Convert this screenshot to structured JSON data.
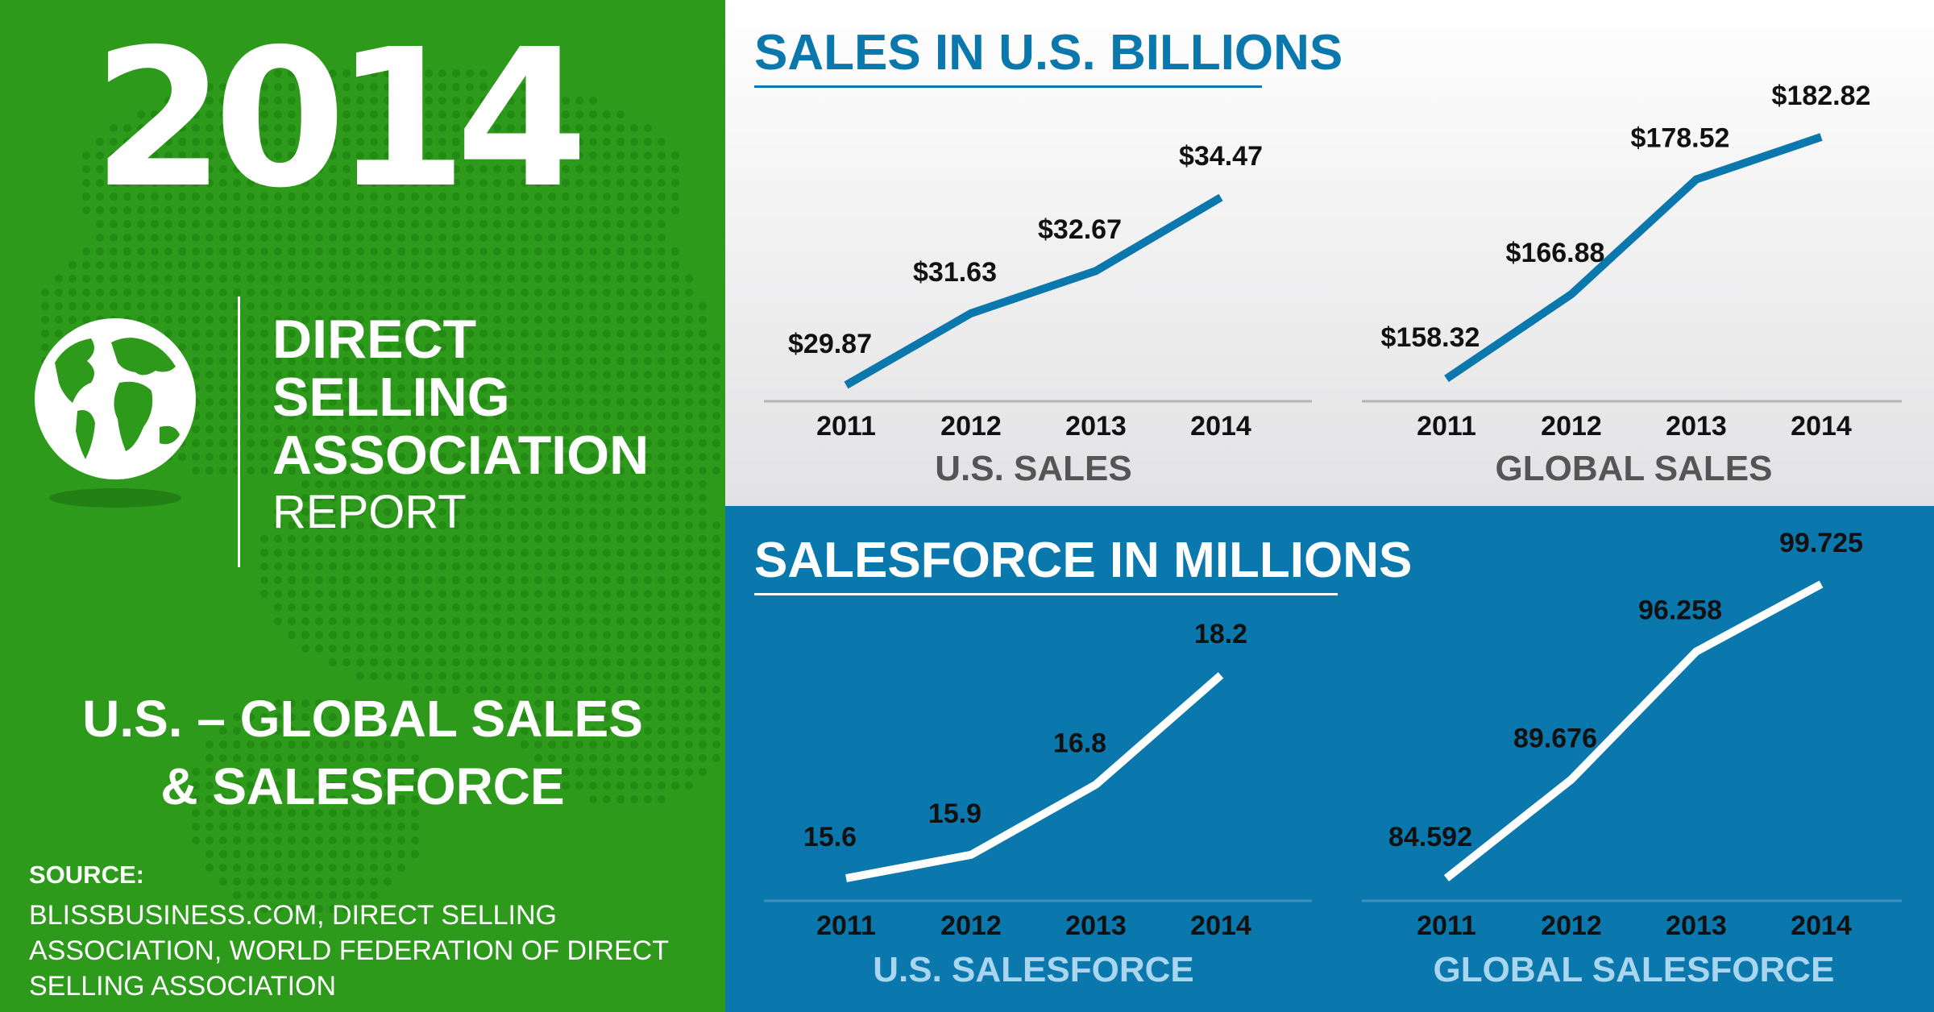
{
  "left": {
    "year": "2014",
    "org_lines": [
      "DIRECT",
      "SELLING",
      "ASSOCIATION"
    ],
    "report": "REPORT",
    "subtitle_lines": [
      "U.S. – GLOBAL SALES",
      "& SALESFORCE"
    ],
    "source_label": "SOURCE:",
    "source_lines": [
      "BLISSBUSINESS.COM, DIRECT SELLING",
      "ASSOCIATION, WORLD FEDERATION OF DIRECT",
      "SELLING ASSOCIATION"
    ],
    "icon": "globe-icon"
  },
  "sections": {
    "sales_title": "SALES IN U.S. BILLIONS",
    "salesforce_title": "SALESFORCE IN MILLIONS"
  },
  "colors": {
    "green": "#2e9a1c",
    "blue": "#0a77ad",
    "label_dark": "#111111",
    "axis_name_gray": "#555555",
    "axis_name_light_blue": "#a9d6ee"
  },
  "chart_data": [
    {
      "type": "line",
      "title": "U.S. SALES",
      "x": [
        "2011",
        "2012",
        "2013",
        "2014"
      ],
      "values": [
        29.87,
        31.63,
        32.67,
        34.47
      ],
      "labels": [
        "$29.87",
        "$31.63",
        "$32.67",
        "$34.47"
      ],
      "line_color": "#0a77ad"
    },
    {
      "type": "line",
      "title": "GLOBAL SALES",
      "x": [
        "2011",
        "2012",
        "2013",
        "2014"
      ],
      "values": [
        158.32,
        166.88,
        178.52,
        182.82
      ],
      "labels": [
        "$158.32",
        "$166.88",
        "$178.52",
        "$182.82"
      ],
      "line_color": "#0a77ad"
    },
    {
      "type": "line",
      "title": "U.S. SALESFORCE",
      "x": [
        "2011",
        "2012",
        "2013",
        "2014"
      ],
      "values": [
        15.6,
        15.9,
        16.8,
        18.2
      ],
      "labels": [
        "15.6",
        "15.9",
        "16.8",
        "18.2"
      ],
      "line_color": "#ffffff"
    },
    {
      "type": "line",
      "title": "GLOBAL SALESFORCE",
      "x": [
        "2011",
        "2012",
        "2013",
        "2014"
      ],
      "values": [
        84.592,
        89.676,
        96.258,
        99.725
      ],
      "labels": [
        "84.592",
        "89.676",
        "96.258",
        "99.725"
      ],
      "line_color": "#ffffff"
    }
  ]
}
